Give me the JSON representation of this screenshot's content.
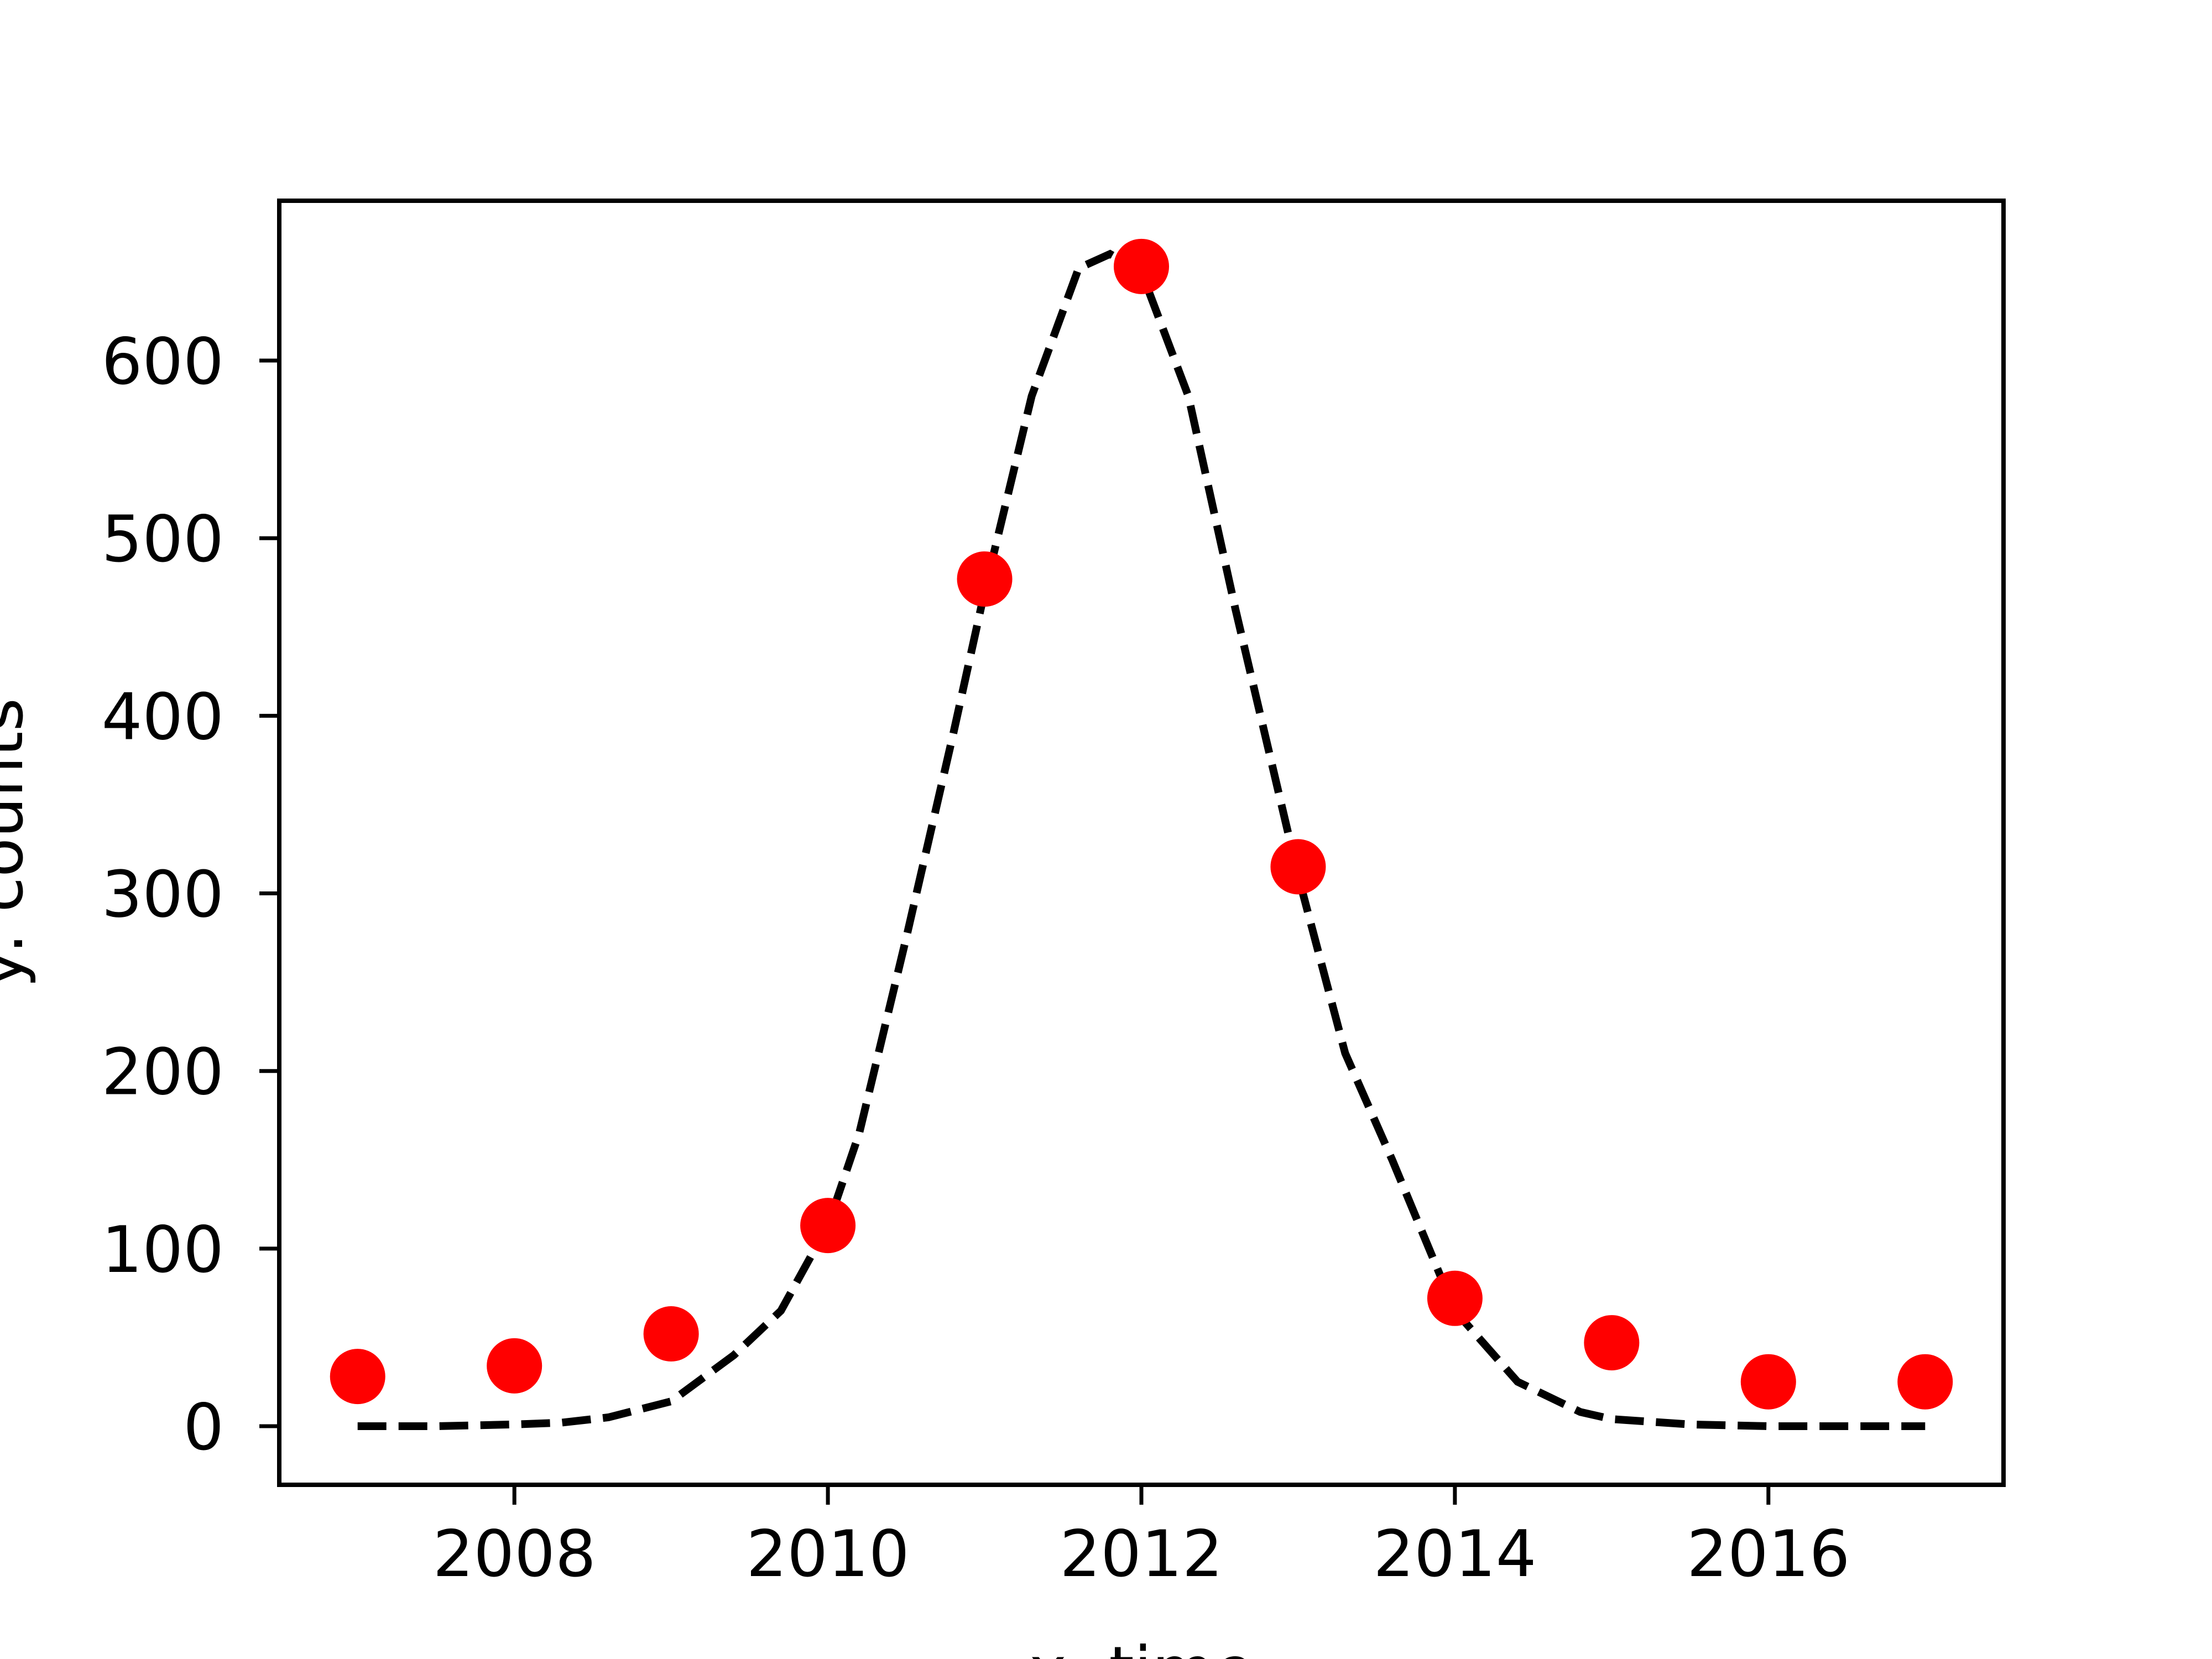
{
  "chart_data": {
    "type": "scatter",
    "title": "",
    "xlabel": "x: time",
    "ylabel": "y: counts",
    "xlim": [
      2006.5,
      2017.5
    ],
    "ylim": [
      -33,
      690
    ],
    "xticks": [
      2008,
      2010,
      2012,
      2014,
      2016
    ],
    "yticks": [
      0,
      100,
      200,
      300,
      400,
      500,
      600
    ],
    "grid": false,
    "legend": "none",
    "series": [
      {
        "kind": "points",
        "color": "#ff0000",
        "x": [
          2007,
          2008,
          2009,
          2010,
          2011,
          2012,
          2013,
          2014,
          2015,
          2016,
          2017
        ],
        "y": [
          28,
          34,
          52,
          113,
          477,
          653,
          315,
          72,
          47,
          25,
          25
        ]
      },
      {
        "kind": "fit-line",
        "color": "#000000",
        "style": "dashed",
        "x": [
          2007,
          2007.5,
          2008,
          2008.3,
          2008.6,
          2009,
          2009.4,
          2009.7,
          2010,
          2010.2,
          2010.5,
          2010.8,
          2011,
          2011.3,
          2011.6,
          2011.8,
          2012,
          2012.3,
          2012.6,
          2013,
          2013.3,
          2013.6,
          2014,
          2014.4,
          2014.8,
          2015,
          2015.5,
          2016,
          2016.5,
          2017
        ],
        "y": [
          0,
          0,
          1,
          2,
          5,
          14,
          40,
          65,
          113,
          165,
          275,
          390,
          470,
          580,
          652,
          660,
          650,
          580,
          460,
          310,
          210,
          150,
          65,
          25,
          8,
          4,
          1,
          0,
          0,
          0
        ]
      }
    ]
  }
}
